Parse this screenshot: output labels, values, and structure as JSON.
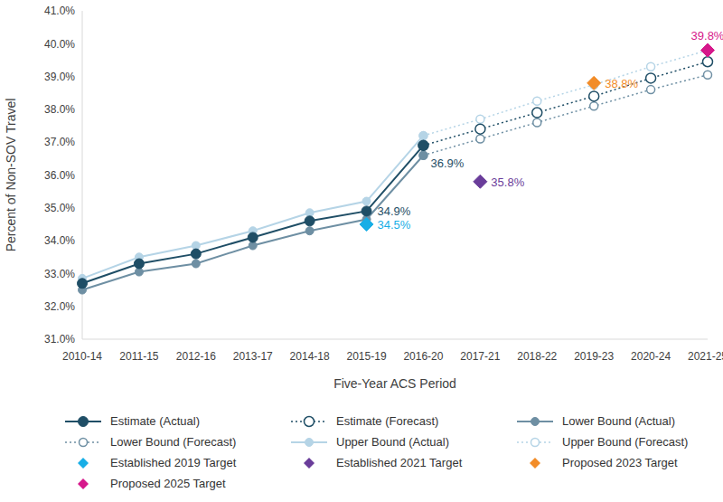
{
  "chart_data": {
    "type": "line",
    "x_label": "Five-Year ACS Period",
    "y_label": "Percent of Non-SOV Travel",
    "categories": [
      "2010-14",
      "2011-15",
      "2012-16",
      "2013-17",
      "2014-18",
      "2015-19",
      "2016-20",
      "2017-21",
      "2018-22",
      "2019-23",
      "2020-24",
      "2021-25"
    ],
    "ylim": [
      31,
      41
    ],
    "yticks": [
      {
        "value": 31,
        "label": "31.0%"
      },
      {
        "value": 32,
        "label": "32.0%"
      },
      {
        "value": 33,
        "label": "33.0%"
      },
      {
        "value": 34,
        "label": "34.0%"
      },
      {
        "value": 35,
        "label": "35.0%"
      },
      {
        "value": 36,
        "label": "36.0%"
      },
      {
        "value": 37,
        "label": "37.0%"
      },
      {
        "value": 38,
        "label": "38.0%"
      },
      {
        "value": 39,
        "label": "39.0%"
      },
      {
        "value": 40,
        "label": "40.0%"
      },
      {
        "value": 41,
        "label": "41.0%"
      }
    ],
    "grid": false,
    "legend": "bottom",
    "data_labels": true,
    "series": [
      {
        "name": "Estimate (Actual)",
        "color": "#1f4e66",
        "marker": "circle",
        "line_style": "solid",
        "values": [
          32.7,
          33.3,
          33.6,
          34.1,
          34.6,
          34.9,
          36.9,
          null,
          null,
          null,
          null,
          null
        ],
        "value_labels": [
          null,
          null,
          null,
          null,
          null,
          "34.9%",
          "36.9%",
          null,
          null,
          null,
          null,
          null
        ]
      },
      {
        "name": "Estimate (Forecast)",
        "color": "#1f4e66",
        "marker": "open_circle",
        "line_style": "dotted",
        "values": [
          null,
          null,
          null,
          null,
          null,
          null,
          36.9,
          37.4,
          37.9,
          38.4,
          38.95,
          39.45
        ]
      },
      {
        "name": "Lower Bound (Actual)",
        "color": "#6e8fa3",
        "marker": "circle",
        "line_style": "solid",
        "values": [
          32.5,
          33.05,
          33.3,
          33.85,
          34.3,
          34.65,
          36.6,
          null,
          null,
          null,
          null,
          null
        ]
      },
      {
        "name": "Lower Bound (Forecast)",
        "color": "#6e8fa3",
        "marker": "open_circle",
        "line_style": "dotted",
        "values": [
          null,
          null,
          null,
          null,
          null,
          null,
          36.6,
          37.1,
          37.6,
          38.1,
          38.6,
          39.05
        ]
      },
      {
        "name": "Upper Bound (Actual)",
        "color": "#b5d4e6",
        "marker": "circle",
        "line_style": "solid",
        "values": [
          32.85,
          33.5,
          33.85,
          34.3,
          34.85,
          35.2,
          37.2,
          null,
          null,
          null,
          null,
          null
        ]
      },
      {
        "name": "Upper Bound (Forecast)",
        "color": "#b5d4e6",
        "marker": "open_circle",
        "line_style": "dotted",
        "values": [
          null,
          null,
          null,
          null,
          null,
          null,
          37.2,
          37.7,
          38.25,
          38.75,
          39.3,
          39.8
        ]
      },
      {
        "name": "Established 2019 Target",
        "color": "#18aee6",
        "marker": "diamond",
        "line_style": "none",
        "values": [
          null,
          null,
          null,
          null,
          null,
          34.5,
          null,
          null,
          null,
          null,
          null,
          null
        ],
        "value_labels": [
          null,
          null,
          null,
          null,
          null,
          "34.5%",
          null,
          null,
          null,
          null,
          null,
          null
        ]
      },
      {
        "name": "Established 2021 Target",
        "color": "#6a3d9a",
        "marker": "diamond",
        "line_style": "none",
        "values": [
          null,
          null,
          null,
          null,
          null,
          null,
          null,
          35.8,
          null,
          null,
          null,
          null
        ],
        "value_labels": [
          null,
          null,
          null,
          null,
          null,
          null,
          null,
          "35.8%",
          null,
          null,
          null,
          null
        ]
      },
      {
        "name": "Proposed 2023 Target",
        "color": "#f28c28",
        "marker": "diamond",
        "line_style": "none",
        "values": [
          null,
          null,
          null,
          null,
          null,
          null,
          null,
          null,
          null,
          38.8,
          null,
          null
        ],
        "value_labels": [
          null,
          null,
          null,
          null,
          null,
          null,
          null,
          null,
          null,
          "38.8%",
          null,
          null
        ]
      },
      {
        "name": "Proposed 2025 Target",
        "color": "#d6188b",
        "marker": "diamond",
        "line_style": "none",
        "values": [
          null,
          null,
          null,
          null,
          null,
          null,
          null,
          null,
          null,
          null,
          null,
          39.8
        ],
        "value_labels": [
          null,
          null,
          null,
          null,
          null,
          null,
          null,
          null,
          null,
          null,
          null,
          "39.8%"
        ]
      }
    ]
  }
}
